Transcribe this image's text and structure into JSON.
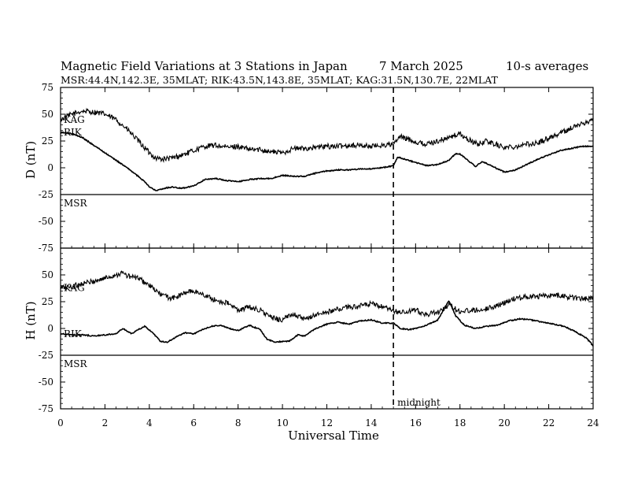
{
  "chart_data": {
    "type": "line",
    "title": "Magnetic Field Variations at 3 Stations in Japan",
    "date_text": "7   March   2025",
    "averaging": "10-s averages",
    "subtitle": "MSR:44.4N,142.3E, 35MLAT;  RIK:43.5N,143.8E, 35MLAT;  KAG:31.5N,130.7E, 22MLAT",
    "xlabel": "Universal Time",
    "xlim": [
      0,
      24
    ],
    "xticks": [
      0,
      2,
      4,
      6,
      8,
      10,
      12,
      14,
      16,
      18,
      20,
      22,
      24
    ],
    "midnight": {
      "x": 15,
      "label": "midnight"
    },
    "panels": [
      {
        "ylabel": "D (nT)",
        "ylim": [
          -75,
          75
        ],
        "yticks": [
          75,
          50,
          25,
          0,
          -25,
          -50,
          -75
        ],
        "station_label": "MSR",
        "series": [
          {
            "name": "KAG",
            "noise": 2.5,
            "points": [
              [
                0,
                45
              ],
              [
                0.5,
                50
              ],
              [
                1,
                53
              ],
              [
                1.5,
                52
              ],
              [
                2,
                50
              ],
              [
                2.5,
                45
              ],
              [
                3,
                36
              ],
              [
                3.5,
                25
              ],
              [
                4,
                14
              ],
              [
                4.3,
                9
              ],
              [
                4.6,
                8
              ],
              [
                5,
                9
              ],
              [
                5.5,
                12
              ],
              [
                6,
                16
              ],
              [
                6.5,
                20
              ],
              [
                7,
                21
              ],
              [
                7.5,
                19
              ],
              [
                8,
                20
              ],
              [
                8.5,
                17
              ],
              [
                9,
                17
              ],
              [
                9.5,
                15
              ],
              [
                10,
                14
              ],
              [
                10.5,
                18
              ],
              [
                11,
                18
              ],
              [
                11.5,
                19
              ],
              [
                12,
                20
              ],
              [
                12.5,
                20
              ],
              [
                13,
                21
              ],
              [
                13.5,
                21
              ],
              [
                14,
                20
              ],
              [
                14.5,
                21
              ],
              [
                15,
                22
              ],
              [
                15.3,
                29
              ],
              [
                15.8,
                26
              ],
              [
                16,
                24
              ],
              [
                16.5,
                22
              ],
              [
                17,
                25
              ],
              [
                17.5,
                28
              ],
              [
                18,
                32
              ],
              [
                18.3,
                27
              ],
              [
                18.8,
                22
              ],
              [
                19.2,
                25
              ],
              [
                19.6,
                22
              ],
              [
                20,
                19
              ],
              [
                20.5,
                20
              ],
              [
                21,
                22
              ],
              [
                21.5,
                23
              ],
              [
                22,
                28
              ],
              [
                22.5,
                32
              ],
              [
                23,
                37
              ],
              [
                23.5,
                41
              ],
              [
                24,
                45
              ]
            ]
          },
          {
            "name": "RIK",
            "noise": 0.5,
            "points": [
              [
                0,
                33
              ],
              [
                0.5,
                32
              ],
              [
                1,
                28
              ],
              [
                1.5,
                21
              ],
              [
                2,
                14
              ],
              [
                2.5,
                7
              ],
              [
                3,
                0
              ],
              [
                3.5,
                -8
              ],
              [
                3.8,
                -13
              ],
              [
                4,
                -18
              ],
              [
                4.3,
                -21
              ],
              [
                4.7,
                -19
              ],
              [
                5,
                -18
              ],
              [
                5.5,
                -19
              ],
              [
                6,
                -17
              ],
              [
                6.5,
                -11
              ],
              [
                7,
                -10
              ],
              [
                7.5,
                -12
              ],
              [
                8,
                -13
              ],
              [
                8.5,
                -11
              ],
              [
                9,
                -10
              ],
              [
                9.5,
                -10
              ],
              [
                10,
                -7
              ],
              [
                10.5,
                -8
              ],
              [
                11,
                -8
              ],
              [
                11.5,
                -5
              ],
              [
                12,
                -3
              ],
              [
                12.5,
                -2
              ],
              [
                13,
                -2
              ],
              [
                13.5,
                -1
              ],
              [
                14,
                -1
              ],
              [
                14.5,
                0
              ],
              [
                15,
                2
              ],
              [
                15.2,
                10
              ],
              [
                15.5,
                8
              ],
              [
                16,
                5
              ],
              [
                16.5,
                2
              ],
              [
                17,
                3
              ],
              [
                17.5,
                7
              ],
              [
                17.8,
                13
              ],
              [
                18,
                13
              ],
              [
                18.3,
                8
              ],
              [
                18.7,
                1
              ],
              [
                19,
                6
              ],
              [
                19.4,
                2
              ],
              [
                20,
                -4
              ],
              [
                20.5,
                -2
              ],
              [
                21,
                3
              ],
              [
                21.5,
                8
              ],
              [
                22,
                12
              ],
              [
                22.5,
                16
              ],
              [
                23,
                18
              ],
              [
                23.5,
                20
              ],
              [
                24,
                20
              ]
            ]
          }
        ]
      },
      {
        "ylabel": "H (nT)",
        "ylim": [
          -75,
          75
        ],
        "yticks": [
          75,
          50,
          25,
          0,
          -25,
          -50,
          -75
        ],
        "station_label": "MSR",
        "series": [
          {
            "name": "KAG",
            "noise": 2.5,
            "points": [
              [
                0,
                38
              ],
              [
                0.5,
                39
              ],
              [
                1,
                42
              ],
              [
                1.5,
                44
              ],
              [
                2,
                47
              ],
              [
                2.5,
                50
              ],
              [
                2.8,
                52
              ],
              [
                3,
                49
              ],
              [
                3.5,
                47
              ],
              [
                4,
                40
              ],
              [
                4.5,
                32
              ],
              [
                5,
                28
              ],
              [
                5.3,
                30
              ],
              [
                5.7,
                34
              ],
              [
                6,
                35
              ],
              [
                6.5,
                31
              ],
              [
                7,
                26
              ],
              [
                7.5,
                24
              ],
              [
                8,
                17
              ],
              [
                8.5,
                20
              ],
              [
                9,
                17
              ],
              [
                9.5,
                10
              ],
              [
                10,
                8
              ],
              [
                10.5,
                14
              ],
              [
                11,
                8
              ],
              [
                11.5,
                13
              ],
              [
                12,
                15
              ],
              [
                12.5,
                18
              ],
              [
                13,
                20
              ],
              [
                13.5,
                21
              ],
              [
                14,
                23
              ],
              [
                14.5,
                20
              ],
              [
                15,
                16
              ],
              [
                15.5,
                15
              ],
              [
                16,
                17
              ],
              [
                16.5,
                13
              ],
              [
                17,
                15
              ],
              [
                17.5,
                22
              ],
              [
                17.8,
                18
              ],
              [
                18,
                16
              ],
              [
                18.5,
                17
              ],
              [
                19,
                18
              ],
              [
                19.5,
                20
              ],
              [
                20,
                24
              ],
              [
                20.5,
                28
              ],
              [
                21,
                30
              ],
              [
                21.5,
                30
              ],
              [
                22,
                31
              ],
              [
                22.5,
                31
              ],
              [
                23,
                29
              ],
              [
                23.5,
                28
              ],
              [
                24,
                28
              ]
            ]
          },
          {
            "name": "RIK",
            "noise": 0.5,
            "points": [
              [
                0,
                -5
              ],
              [
                0.5,
                -6
              ],
              [
                1,
                -6
              ],
              [
                1.5,
                -7
              ],
              [
                2,
                -6
              ],
              [
                2.5,
                -5
              ],
              [
                2.8,
                0
              ],
              [
                3.2,
                -5
              ],
              [
                3.5,
                -1
              ],
              [
                3.8,
                2
              ],
              [
                4.2,
                -5
              ],
              [
                4.5,
                -12
              ],
              [
                4.8,
                -13
              ],
              [
                5.2,
                -8
              ],
              [
                5.6,
                -4
              ],
              [
                6,
                -5
              ],
              [
                6.4,
                -1
              ],
              [
                6.8,
                2
              ],
              [
                7.2,
                3
              ],
              [
                7.6,
                0
              ],
              [
                8,
                -2
              ],
              [
                8.5,
                3
              ],
              [
                9,
                -1
              ],
              [
                9.3,
                -10
              ],
              [
                9.7,
                -13
              ],
              [
                10,
                -12
              ],
              [
                10.3,
                -12
              ],
              [
                10.7,
                -6
              ],
              [
                11,
                -7
              ],
              [
                11.5,
                0
              ],
              [
                12,
                4
              ],
              [
                12.5,
                6
              ],
              [
                13,
                4
              ],
              [
                13.5,
                7
              ],
              [
                14,
                8
              ],
              [
                14.5,
                5
              ],
              [
                15,
                5
              ],
              [
                15.3,
                0
              ],
              [
                15.7,
                -1
              ],
              [
                16,
                0
              ],
              [
                16.5,
                3
              ],
              [
                17,
                8
              ],
              [
                17.5,
                26
              ],
              [
                17.8,
                12
              ],
              [
                18.2,
                3
              ],
              [
                18.7,
                0
              ],
              [
                19.2,
                2
              ],
              [
                19.7,
                3
              ],
              [
                20.2,
                7
              ],
              [
                20.7,
                9
              ],
              [
                21.2,
                8
              ],
              [
                21.7,
                6
              ],
              [
                22.2,
                4
              ],
              [
                22.7,
                2
              ],
              [
                23.2,
                -3
              ],
              [
                23.7,
                -9
              ],
              [
                24,
                -16
              ]
            ]
          }
        ]
      }
    ]
  }
}
